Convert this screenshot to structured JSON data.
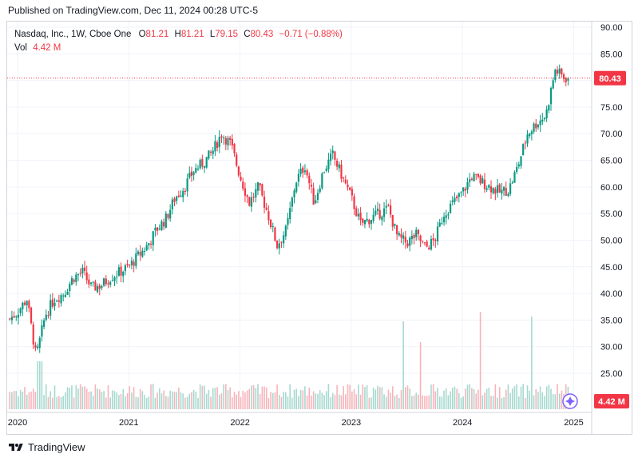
{
  "header": {
    "published": "Published on TradingView.com, Dec 11, 2024 00:28 UTC-5"
  },
  "legend": {
    "symbol": "Nasdaq, Inc., 1W, Cboe One",
    "o_label": "O",
    "o_value": "81.21",
    "h_label": "H",
    "h_value": "81.21",
    "l_label": "L",
    "l_value": "79.15",
    "c_label": "C",
    "c_value": "80.43",
    "change": "−0.71 (−0.88%)",
    "vol_label": "Vol",
    "vol_value": "4.42 M"
  },
  "price_tag": "80.43",
  "volume_tag": "4.42 M",
  "footer": {
    "brand": "TradingView"
  },
  "colors": {
    "up": "#089981",
    "down": "#f23645",
    "up_vol": "#a6d9cf",
    "down_vol": "#f7b4ba",
    "accent": "#7b61ff"
  },
  "chart_data": {
    "type": "candlestick",
    "y_ticks": [
      "90.00",
      "85.00",
      "80.00",
      "75.00",
      "70.00",
      "65.00",
      "60.00",
      "55.00",
      "50.00",
      "45.00",
      "40.00",
      "35.00",
      "30.00",
      "25.00"
    ],
    "ylim": [
      21.5,
      91.5
    ],
    "x_ticks": [
      "2020",
      "2021",
      "2022",
      "2023",
      "2024",
      "2025"
    ],
    "last_close": 80.43,
    "close_path": [
      [
        "2019-12",
        35.0
      ],
      [
        "2020-01",
        36.5
      ],
      [
        "2020-02",
        39.0
      ],
      [
        "2020-03",
        28.0
      ],
      [
        "2020-04",
        36.0
      ],
      [
        "2020-05",
        39.0
      ],
      [
        "2020-06",
        40.0
      ],
      [
        "2020-07",
        43.0
      ],
      [
        "2020-08",
        44.0
      ],
      [
        "2020-09",
        41.0
      ],
      [
        "2020-10",
        41.5
      ],
      [
        "2020-11",
        43.0
      ],
      [
        "2020-12",
        44.0
      ],
      [
        "2021-01",
        45.0
      ],
      [
        "2021-02",
        47.0
      ],
      [
        "2021-03",
        49.0
      ],
      [
        "2021-04",
        52.0
      ],
      [
        "2021-05",
        54.0
      ],
      [
        "2021-06",
        58.0
      ],
      [
        "2021-07",
        60.0
      ],
      [
        "2021-08",
        63.0
      ],
      [
        "2021-09",
        64.5
      ],
      [
        "2021-10",
        66.5
      ],
      [
        "2021-11",
        70.0
      ],
      [
        "2021-12",
        68.0
      ],
      [
        "2022-01",
        62.0
      ],
      [
        "2022-02",
        57.0
      ],
      [
        "2022-03",
        60.0
      ],
      [
        "2022-04",
        55.0
      ],
      [
        "2022-05",
        49.0
      ],
      [
        "2022-06",
        52.0
      ],
      [
        "2022-07",
        61.0
      ],
      [
        "2022-08",
        64.0
      ],
      [
        "2022-09",
        57.0
      ],
      [
        "2022-10",
        63.0
      ],
      [
        "2022-11",
        66.0
      ],
      [
        "2022-12",
        62.0
      ],
      [
        "2023-01",
        58.0
      ],
      [
        "2023-02",
        53.0
      ],
      [
        "2023-03",
        54.0
      ],
      [
        "2023-04",
        55.0
      ],
      [
        "2023-05",
        56.0
      ],
      [
        "2023-06",
        50.5
      ],
      [
        "2023-07",
        49.5
      ],
      [
        "2023-08",
        51.0
      ],
      [
        "2023-09",
        48.5
      ],
      [
        "2023-10",
        50.0
      ],
      [
        "2023-11",
        55.0
      ],
      [
        "2023-12",
        57.0
      ],
      [
        "2024-01",
        59.0
      ],
      [
        "2024-02",
        62.0
      ],
      [
        "2024-03",
        61.0
      ],
      [
        "2024-04",
        60.0
      ],
      [
        "2024-05",
        59.0
      ],
      [
        "2024-06",
        59.5
      ],
      [
        "2024-07",
        64.0
      ],
      [
        "2024-08",
        70.0
      ],
      [
        "2024-09",
        72.0
      ],
      [
        "2024-10",
        73.5
      ],
      [
        "2024-11",
        82.0
      ],
      [
        "2024-12",
        80.43
      ]
    ]
  }
}
